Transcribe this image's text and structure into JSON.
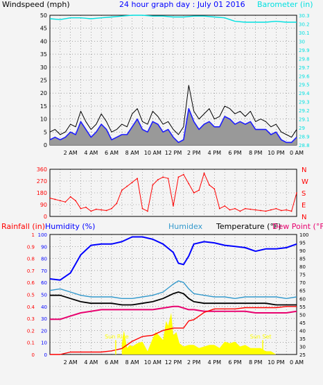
{
  "colors": {
    "background": "#f4f4f4",
    "frame": "#000000",
    "grid": "#000000",
    "wind_gust": "#000000",
    "wind_avg": "#1c1cff",
    "wind_avg_fill": "#999999",
    "barometer": "#00e0e0",
    "direction": "#ff0000",
    "humidity": "#0000ff",
    "humidex": "#3399cc",
    "temperature": "#000000",
    "dew_point": "#e8006e",
    "rainfall": "#ff0000",
    "solar": "#ffff00",
    "title": "#0000ff"
  },
  "header": {
    "windspeed_label": "Windspeed (mph)",
    "title": "24 hour graph day : July 01 2016",
    "barometer_label": "Barometer (in)"
  },
  "bottom_header": {
    "rainfall_label": "Rainfall (in)",
    "humidity_label": "Humidity (%)",
    "humidex_label": "Humidex",
    "temperature_label": "Temperature (°F)",
    "dewpoint_label": "Dew Point (°F)"
  },
  "time_labels": [
    "2 AM",
    "4 AM",
    "6 AM",
    "8 AM",
    "10 AM",
    "12 PM",
    "2 PM",
    "4 PM",
    "6 PM",
    "8 PM",
    "10 PM",
    "0 AM"
  ],
  "direction_letters": [
    "N",
    "W",
    "S",
    "E",
    "N"
  ],
  "annotations": {
    "sunrise": "Sun Rise",
    "sunset": "Sun Set"
  },
  "chart_data": [
    {
      "type": "line",
      "title": "24 hour graph day : July 01 2016",
      "x_unit": "hour",
      "xlim": [
        0,
        24
      ],
      "ylabel": "Windspeed (mph)",
      "ylim": [
        0,
        50
      ],
      "y_ticks": [
        0,
        5,
        10,
        15,
        20,
        25,
        30,
        35,
        40,
        45,
        50
      ],
      "y2label": "Barometer (in)",
      "y2lim": [
        28.8,
        30.3
      ],
      "y2_ticks": [
        "28.8",
        "28.9",
        "29",
        "29.1",
        "29.2",
        "29.3",
        "29.4",
        "29.5",
        "29.6",
        "29.7",
        "29.8",
        "29.9",
        "30",
        "30.1",
        "30.2",
        "30.3"
      ],
      "grid": true,
      "series": [
        {
          "name": "Gust",
          "axis": "y",
          "x": [
            0,
            0.5,
            1,
            1.5,
            2,
            2.5,
            3,
            3.5,
            4,
            4.5,
            5,
            5.5,
            6,
            6.5,
            7,
            7.5,
            8,
            8.5,
            9,
            9.5,
            10,
            10.5,
            11,
            11.5,
            12,
            12.5,
            13,
            13.5,
            14,
            14.5,
            15,
            15.5,
            16,
            16.5,
            17,
            17.5,
            18,
            18.5,
            19,
            19.5,
            20,
            20.5,
            21,
            21.5,
            22,
            22.5,
            23,
            23.5,
            24
          ],
          "y": [
            5,
            6,
            4,
            5,
            8,
            7,
            13,
            9,
            6,
            8,
            12,
            9,
            5,
            6,
            8,
            7,
            12,
            14,
            9,
            8,
            13,
            11,
            8,
            9,
            6,
            4,
            7,
            23,
            13,
            10,
            12,
            14,
            10,
            11,
            15,
            14,
            12,
            13,
            11,
            13,
            9,
            10,
            9,
            7,
            8,
            5,
            4,
            3,
            6
          ]
        },
        {
          "name": "Average",
          "axis": "y",
          "x": [
            0,
            0.5,
            1,
            1.5,
            2,
            2.5,
            3,
            3.5,
            4,
            4.5,
            5,
            5.5,
            6,
            6.5,
            7,
            7.5,
            8,
            8.5,
            9,
            9.5,
            10,
            10.5,
            11,
            11.5,
            12,
            12.5,
            13,
            13.5,
            14,
            14.5,
            15,
            15.5,
            16,
            16.5,
            17,
            17.5,
            18,
            18.5,
            19,
            19.5,
            20,
            20.5,
            21,
            21.5,
            22,
            22.5,
            23,
            23.5,
            24
          ],
          "y": [
            2,
            3,
            2,
            3,
            5,
            4,
            9,
            6,
            3,
            5,
            8,
            6,
            2,
            3,
            4,
            4,
            7,
            10,
            6,
            5,
            9,
            8,
            5,
            6,
            3,
            1,
            2,
            14,
            9,
            6,
            8,
            9,
            7,
            7,
            11,
            10,
            8,
            9,
            8,
            9,
            6,
            6,
            6,
            4,
            5,
            2,
            1,
            1,
            3
          ]
        },
        {
          "name": "Barometer",
          "axis": "y2",
          "x": [
            0,
            1,
            2,
            3,
            4,
            5,
            6,
            7,
            8,
            9,
            10,
            11,
            12,
            13,
            14,
            15,
            16,
            17,
            18,
            19,
            20,
            21,
            22,
            23,
            24
          ],
          "y": [
            30.26,
            30.25,
            30.27,
            30.27,
            30.26,
            30.27,
            30.28,
            30.29,
            30.3,
            30.3,
            30.29,
            30.29,
            30.28,
            30.28,
            30.29,
            30.29,
            30.28,
            30.27,
            30.23,
            30.22,
            30.22,
            30.22,
            30.23,
            30.22,
            30.22
          ]
        }
      ]
    },
    {
      "type": "scatter",
      "title": "",
      "x_unit": "hour",
      "xlim": [
        0,
        24
      ],
      "ylabel": "",
      "ylim": [
        0,
        360
      ],
      "y_ticks": [
        0,
        90,
        180,
        270,
        360
      ],
      "grid": true,
      "series": [
        {
          "name": "Direction",
          "x": [
            0,
            0.5,
            1,
            1.5,
            2,
            2.5,
            3,
            3.5,
            4,
            4.5,
            5,
            5.5,
            6,
            6.5,
            7,
            7.5,
            8,
            8.5,
            9,
            9.5,
            10,
            10.5,
            11,
            11.5,
            12,
            12.5,
            13,
            13.5,
            14,
            14.5,
            15,
            15.5,
            16,
            16.5,
            17,
            17.5,
            18,
            18.5,
            19,
            19.5,
            20,
            20.5,
            21,
            21.5,
            22,
            22.5,
            23,
            23.5,
            24
          ],
          "y": [
            140,
            130,
            120,
            110,
            150,
            120,
            60,
            70,
            40,
            55,
            50,
            45,
            60,
            100,
            200,
            230,
            260,
            290,
            60,
            40,
            240,
            280,
            300,
            290,
            80,
            300,
            320,
            250,
            180,
            200,
            330,
            240,
            210,
            60,
            80,
            50,
            60,
            40,
            60,
            55,
            50,
            45,
            40,
            50,
            60,
            45,
            50,
            40,
            180
          ]
        }
      ]
    },
    {
      "type": "line",
      "title": "",
      "x_unit": "hour",
      "xlim": [
        0,
        24
      ],
      "ylabel": "Rainfall (in)",
      "ylim": [
        0,
        1
      ],
      "y_ticks": [
        0,
        0.1,
        0.2,
        0.3,
        0.4,
        0.5,
        0.6,
        0.7,
        0.8,
        0.9,
        1
      ],
      "humidity_ylim": [
        0,
        100
      ],
      "humidity_ticks": [
        0,
        10,
        20,
        30,
        40,
        50,
        60,
        70,
        80,
        90,
        100
      ],
      "y2label": "Temperature (°F)",
      "y2lim": [
        25,
        100
      ],
      "y2_ticks": [
        25,
        30,
        35,
        40,
        45,
        50,
        55,
        60,
        65,
        70,
        75,
        80,
        85,
        90,
        95,
        100
      ],
      "grid": true,
      "series": [
        {
          "name": "Humidity (%)",
          "axis": "humidity",
          "x": [
            0,
            1,
            2,
            3,
            4,
            5,
            6,
            7,
            8,
            9,
            10,
            11,
            12,
            12.5,
            13,
            13.5,
            14,
            15,
            16,
            17,
            18,
            19,
            20,
            21,
            22,
            23,
            24
          ],
          "y": [
            63,
            62,
            68,
            83,
            91,
            92,
            92,
            94,
            98,
            98,
            96,
            92,
            85,
            76,
            75,
            82,
            92,
            94,
            93,
            91,
            90,
            89,
            86,
            88,
            88,
            89,
            92
          ]
        },
        {
          "name": "Humidex",
          "axis": "y2",
          "x": [
            0,
            1,
            2,
            3,
            4,
            5,
            6,
            7,
            8,
            9,
            10,
            11,
            12,
            12.5,
            13,
            13.5,
            14,
            15,
            16,
            17,
            18,
            19,
            20,
            21,
            22,
            23,
            24
          ],
          "y": [
            65,
            66,
            64,
            62,
            61,
            61,
            61,
            60,
            60,
            61,
            62,
            64,
            69,
            71,
            70,
            66,
            63,
            62,
            61,
            61,
            60,
            61,
            61,
            61,
            61,
            60,
            61
          ]
        },
        {
          "name": "Temperature",
          "axis": "y2",
          "x": [
            0,
            1,
            2,
            3,
            4,
            5,
            6,
            7,
            8,
            9,
            10,
            11,
            12,
            12.5,
            13,
            13.5,
            14,
            15,
            16,
            17,
            18,
            19,
            20,
            21,
            22,
            23,
            24
          ],
          "y": [
            62,
            62,
            60,
            58,
            57,
            57,
            57,
            56,
            56,
            57,
            58,
            60,
            63,
            64,
            63,
            60,
            58,
            57,
            57,
            57,
            57,
            57,
            57,
            57,
            56,
            56,
            56
          ]
        },
        {
          "name": "Dew Point",
          "axis": "y2",
          "x": [
            0,
            1,
            2,
            3,
            4,
            5,
            6,
            7,
            8,
            9,
            10,
            11,
            12,
            12.5,
            13,
            13.5,
            14,
            15,
            16,
            17,
            18,
            19,
            20,
            21,
            22,
            23,
            24
          ],
          "y": [
            47,
            47,
            49,
            51,
            52,
            53,
            53,
            53,
            53,
            53,
            53,
            54,
            55,
            55,
            54,
            53,
            53,
            52,
            52,
            52,
            52,
            52,
            51,
            51,
            51,
            51,
            52
          ]
        },
        {
          "name": "Rainfall",
          "axis": "y",
          "x": [
            0,
            1,
            2,
            3,
            4,
            5,
            6,
            7,
            8,
            9,
            10,
            11,
            12,
            13,
            13.5,
            14,
            15,
            16,
            17,
            18,
            19,
            20,
            21,
            22,
            23,
            24
          ],
          "y": [
            0,
            0,
            0.02,
            0.02,
            0.02,
            0.02,
            0.03,
            0.05,
            0.11,
            0.15,
            0.16,
            0.2,
            0.22,
            0.22,
            0.28,
            0.29,
            0.35,
            0.38,
            0.38,
            0.38,
            0.39,
            0.39,
            0.39,
            0.39,
            0.4,
            0.4
          ]
        },
        {
          "name": "Solar",
          "axis": "y2",
          "type": "area",
          "x": [
            7,
            7.2,
            7.5,
            7.8,
            8,
            8.5,
            9,
            9.5,
            10,
            10.3,
            10.6,
            11,
            11.3,
            11.5,
            11.8,
            12,
            12.3,
            12.6,
            13,
            13.5,
            14,
            14.5,
            15,
            15.5,
            16,
            16.5,
            17,
            17.5,
            18,
            18.5,
            19,
            19.5,
            20,
            20.5,
            21,
            21.5,
            22
          ],
          "y": [
            32,
            40,
            29,
            31,
            30,
            32,
            33,
            27,
            35,
            39,
            37,
            34,
            46,
            43,
            51,
            37,
            39,
            32,
            30,
            31,
            31,
            29,
            30,
            31,
            31,
            29,
            33,
            32,
            33,
            30,
            31,
            29,
            29,
            29,
            27,
            27,
            25
          ]
        }
      ]
    }
  ]
}
